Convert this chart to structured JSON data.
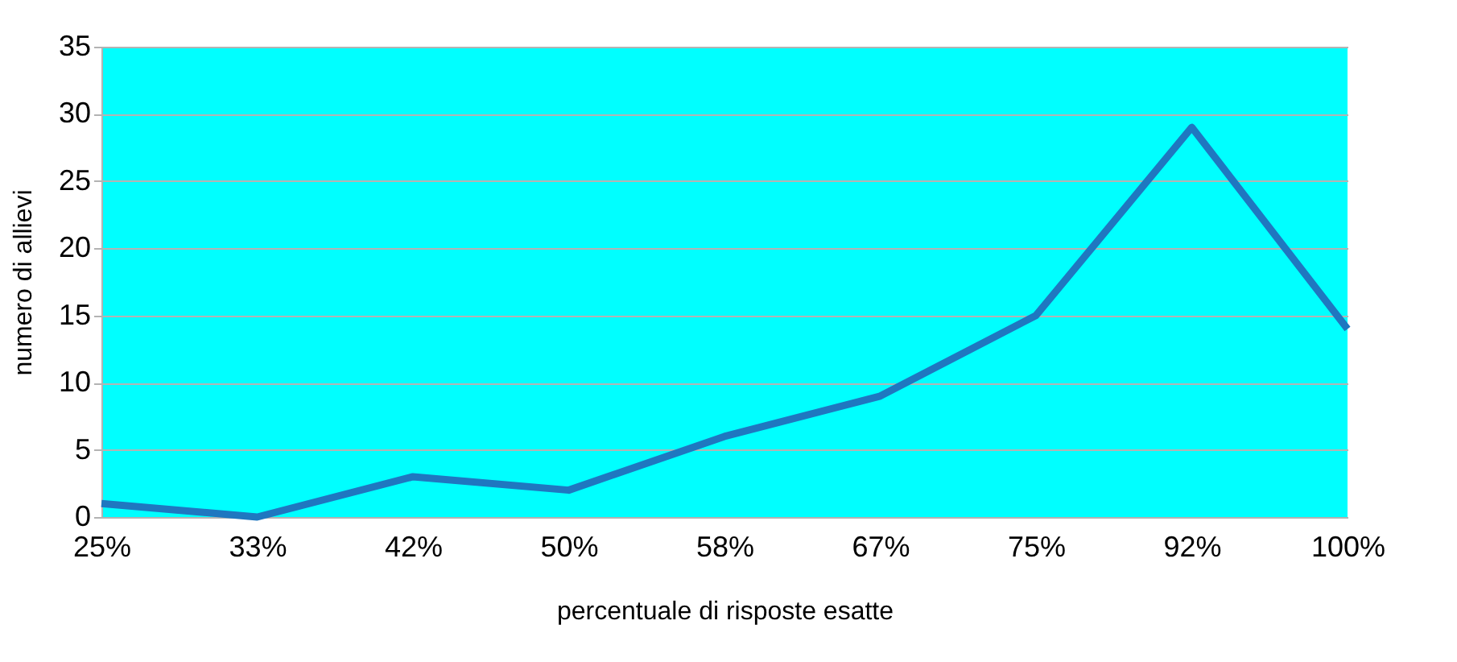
{
  "chart_data": {
    "type": "line",
    "xlabel": "percentuale di risposte esatte",
    "ylabel": "numero di allievi",
    "categories": [
      "25%",
      "33%",
      "42%",
      "50%",
      "58%",
      "67%",
      "75%",
      "92%",
      "100%"
    ],
    "series": [
      {
        "color": "#1f77c0",
        "values": [
          1,
          0,
          3,
          2,
          6,
          9,
          15,
          29,
          14
        ]
      }
    ],
    "ylim": [
      0,
      35
    ],
    "yticks": [
      0,
      5,
      10,
      15,
      20,
      25,
      30,
      35
    ],
    "grid": "y",
    "legend": false,
    "marker": "none",
    "line_style": "solid"
  }
}
